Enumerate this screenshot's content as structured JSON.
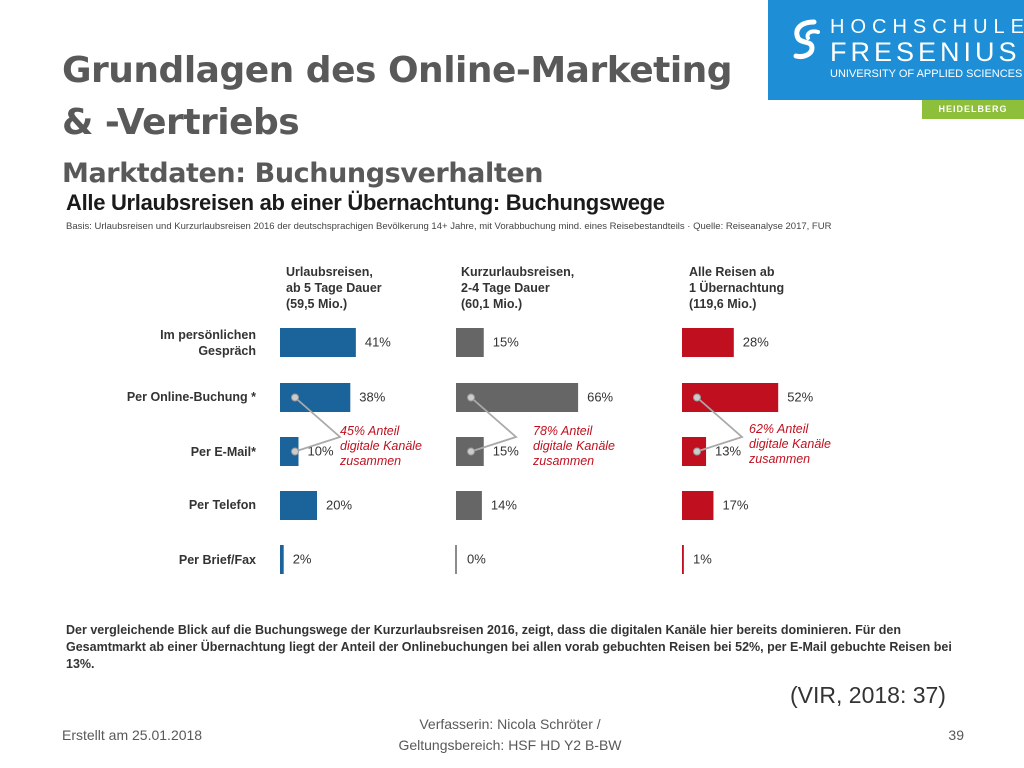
{
  "slide": {
    "title_line1": "Grundlagen des Online-Marketing",
    "title_line2": "& -Vertriebs",
    "subtitle": "Marktdaten: Buchungsverhalten"
  },
  "logo": {
    "line1": "HOCHSCHULE",
    "line2": "FRESENIUS",
    "line3": "UNIVERSITY OF APPLIED SCIENCES",
    "campus": "HEIDELBERG",
    "brand_color": "#1e8fd6",
    "campus_color": "#8dbf3a"
  },
  "chart_data": {
    "type": "bar",
    "orientation": "horizontal",
    "title": "Alle Urlaubsreisen ab einer Übernachtung: Buchungswege",
    "note": "Basis: Urlaubsreisen und Kurzurlaubsreisen 2016 der deutschsprachigen Bevölkerung 14+ Jahre, mit Vorabbuchung mind. eines Reisebestandteils · Quelle: Reiseanalyse 2017, FUR",
    "categories": [
      "Im persönlichen Gespräch",
      "Per Online-Buchung *",
      "Per E-Mail*",
      "Per Telefon",
      "Per Brief/Fax"
    ],
    "category_lines": [
      [
        "Im persönlichen",
        "Gespräch"
      ],
      [
        "Per Online-Buchung *"
      ],
      [
        "Per E-Mail*"
      ],
      [
        "Per Telefon"
      ],
      [
        "Per Brief/Fax"
      ]
    ],
    "value_suffix": "%",
    "series": [
      {
        "name": "Urlaubsreisen, ab 5 Tage Dauer (59,5 Mio.)",
        "name_lines": [
          "Urlaubsreisen,",
          "ab 5 Tage Dauer",
          "(59,5 Mio.)"
        ],
        "color": "#1a639b",
        "values": [
          41,
          38,
          10,
          20,
          2
        ],
        "callout": [
          "45% Anteil",
          "digitale Kanäle",
          "zusammen"
        ]
      },
      {
        "name": "Kurzurlaubsreisen, 2-4 Tage Dauer (60,1 Mio.)",
        "name_lines": [
          "Kurzurlaubsreisen,",
          "2-4 Tage Dauer",
          "(60,1 Mio.)"
        ],
        "color": "#666666",
        "values": [
          15,
          66,
          15,
          14,
          0
        ],
        "callout": [
          "78% Anteil",
          "digitale Kanäle",
          "zusammen"
        ]
      },
      {
        "name": "Alle Reisen ab 1 Übernachtung (119,6 Mio.)",
        "name_lines": [
          "Alle Reisen ab",
          "1 Übernachtung",
          "(119,6 Mio.)"
        ],
        "color": "#c0101f",
        "values": [
          28,
          52,
          13,
          17,
          1
        ],
        "callout": [
          "62% Anteil",
          "digitale Kanäle",
          "zusammen"
        ]
      }
    ],
    "callout_color": "#c0101f",
    "xlim": [
      0,
      100
    ],
    "grid": false,
    "legend": "none"
  },
  "figure_text": "Der vergleichende Blick auf die Buchungswege der Kurzurlaubsreisen 2016, zeigt, dass die digitalen Kanäle hier bereits dominieren. Für den Gesamtmarkt ab einer Übernachtung liegt der Anteil der Onlinebuchungen bei allen vorab gebuchten Reisen bei 52%, per E-Mail gebuchte Reisen bei 13%.",
  "citation": "(VIR, 2018: 37)",
  "footer": {
    "date": "Erstellt am 25.01.2018",
    "author_line1": "Verfasserin: Nicola Schröter /",
    "author_line2": "Geltungsbereich:  HSF HD Y2 B-BW",
    "page_number": "39"
  }
}
